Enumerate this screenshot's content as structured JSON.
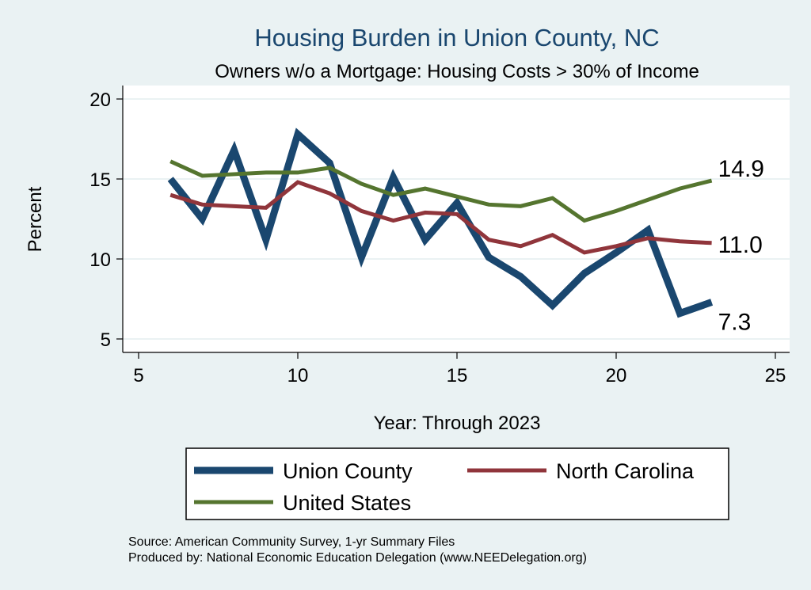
{
  "chart_data": {
    "type": "line",
    "title": "Housing Burden in Union County, NC",
    "subtitle": "Owners w/o a Mortgage: Housing Costs > 30% of Income",
    "xlabel": "Year: Through 2023",
    "ylabel": "Percent",
    "xlim": [
      5,
      25
    ],
    "ylim": [
      5,
      20
    ],
    "xticks": [
      "5",
      "10",
      "15",
      "20",
      "25"
    ],
    "yticks": [
      "5",
      "10",
      "15",
      "20"
    ],
    "grid": true,
    "legend_position": "bottom",
    "x": [
      6,
      7,
      8,
      9,
      10,
      11,
      12,
      13,
      14,
      15,
      16,
      17,
      18,
      19,
      20,
      21,
      22,
      23
    ],
    "series": [
      {
        "name": "Union County",
        "color": "#1a476f",
        "end_label": "7.3",
        "values": [
          15.0,
          12.5,
          16.8,
          11.2,
          17.8,
          16.0,
          10.1,
          15.1,
          11.2,
          13.5,
          10.1,
          8.9,
          7.1,
          9.1,
          10.4,
          11.8,
          6.6,
          7.3
        ]
      },
      {
        "name": "North Carolina",
        "color": "#90353b",
        "end_label": "11.0",
        "values": [
          14.0,
          13.4,
          13.3,
          13.2,
          14.8,
          14.1,
          13.0,
          12.4,
          12.9,
          12.8,
          11.2,
          10.8,
          11.5,
          10.4,
          10.8,
          11.3,
          11.1,
          11.0
        ]
      },
      {
        "name": "United States",
        "color": "#55752f",
        "end_label": "14.9",
        "values": [
          16.1,
          15.2,
          15.3,
          15.4,
          15.4,
          15.7,
          14.7,
          14.0,
          14.4,
          13.9,
          13.4,
          13.3,
          13.8,
          12.4,
          13.0,
          13.7,
          14.4,
          14.9
        ]
      }
    ],
    "notes": [
      "Source: American Community Survey, 1-yr Summary Files",
      "Produced by: National Economic Education Delegation (www.NEEDelegation.org)"
    ]
  }
}
